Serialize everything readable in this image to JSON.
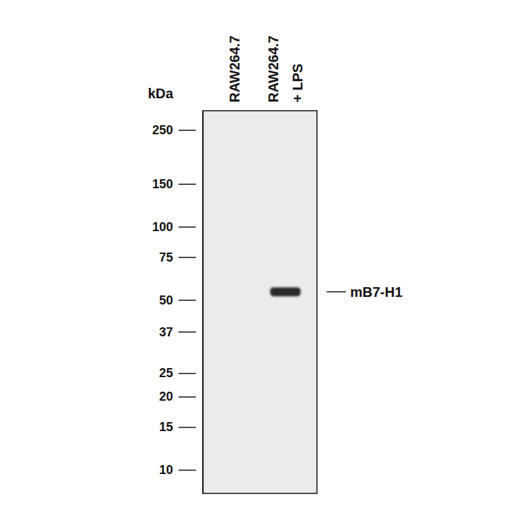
{
  "chart_data": {
    "type": "western_blot",
    "y_label": "kDa",
    "categories": [
      "RAW264.7",
      "RAW264.7 + LPS"
    ],
    "series": [
      {
        "name": "mB7-H1",
        "color": "#2b2b2b",
        "values": [
          null,
          54
        ]
      }
    ],
    "ylim": [
      8,
      300
    ],
    "yticks": [
      250,
      150,
      100,
      75,
      50,
      37,
      25,
      20,
      15,
      10
    ],
    "log": "y",
    "grid": false
  }
}
